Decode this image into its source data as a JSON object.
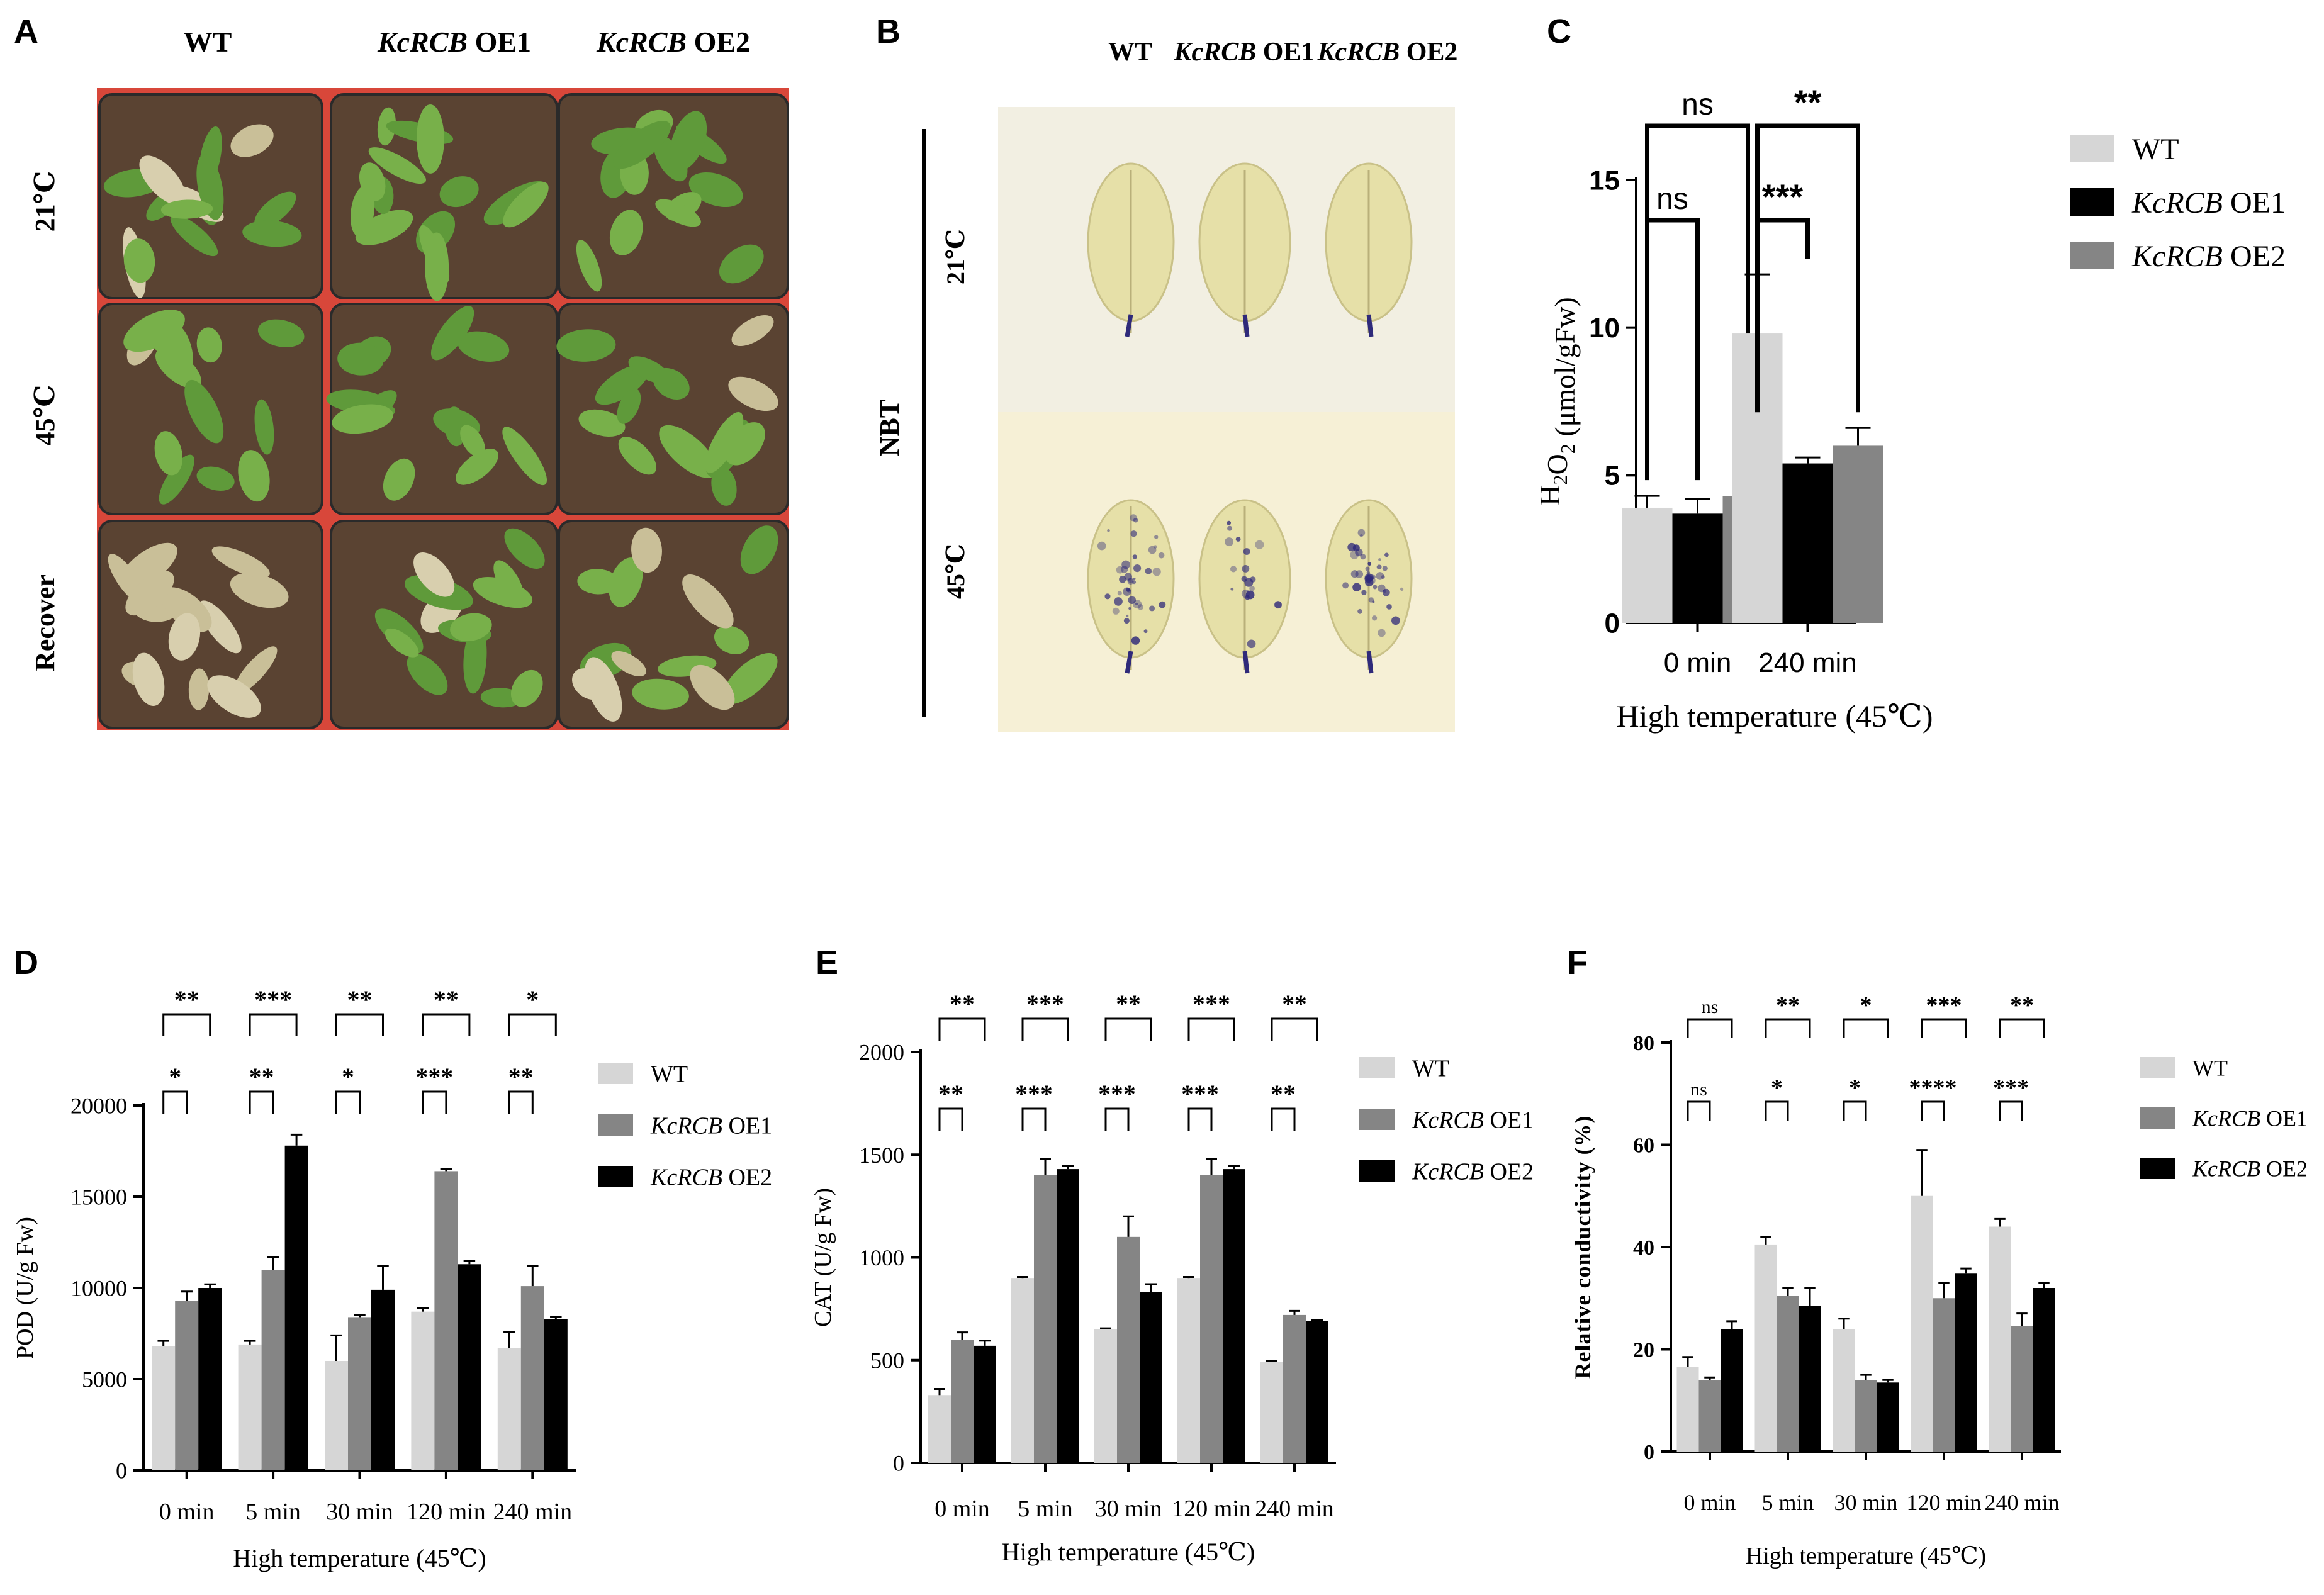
{
  "figure": {
    "panels": {
      "A": {
        "label": "A",
        "columns": [
          {
            "gene": "",
            "suffix": "WT"
          },
          {
            "gene": "KcRCB",
            "suffix": " OE1"
          },
          {
            "gene": "KcRCB",
            "suffix": " OE2"
          }
        ],
        "rows": [
          "21℃",
          "45℃",
          "Recover"
        ],
        "tray_color": "#e04a3a",
        "soil_color": "#5a4332",
        "plant_health": [
          [
            0.95,
            0.98,
            0.95
          ],
          [
            0.8,
            0.95,
            0.85
          ],
          [
            0.1,
            0.85,
            0.55
          ]
        ]
      },
      "B": {
        "label": "B",
        "columns": [
          {
            "gene": "",
            "suffix": "WT"
          },
          {
            "gene": "KcRCB",
            "suffix": " OE1"
          },
          {
            "gene": "KcRCB",
            "suffix": " OE2"
          }
        ],
        "stain": "NBT",
        "rows": [
          "21℃",
          "45℃"
        ],
        "background_color": "#f2efe2",
        "leaf_color": "#e6e0a8",
        "stain_color": "#2f2a7a"
      },
      "C": {
        "label": "C"
      },
      "D": {
        "label": "D"
      },
      "E": {
        "label": "E"
      },
      "F": {
        "label": "F"
      }
    }
  },
  "chart_data": [
    {
      "id": "C",
      "type": "bar",
      "categories": [
        "0 min",
        "240 min"
      ],
      "series": [
        {
          "name": "WT",
          "color": "#d6d6d6",
          "values": [
            3.9,
            9.8
          ],
          "errors": [
            0.4,
            2.0
          ]
        },
        {
          "name": "KcRCB OE1",
          "color": "#000000",
          "values": [
            3.7,
            5.4
          ],
          "errors": [
            0.5,
            0.2
          ]
        },
        {
          "name": "KcRCB OE2",
          "color": "#858585",
          "values": [
            4.3,
            6.0
          ],
          "errors": [
            1.2,
            0.6
          ]
        }
      ],
      "ylim": [
        0,
        15
      ],
      "yticks": [
        "0",
        "5",
        "10",
        "15"
      ],
      "ylabel_main": "H",
      "ylabel_sub": "2",
      "ylabel_mid": "O",
      "ylabel_sub2": "2",
      "ylabel_tail": " (μmol/gFw)",
      "xlabel": "High temperature (45℃)",
      "significance": [
        {
          "category": "0 min",
          "inner": "ns",
          "outer": "ns"
        },
        {
          "category": "240 min",
          "inner": "***",
          "outer": "**"
        }
      ],
      "legend_position": "right"
    },
    {
      "id": "D",
      "type": "bar",
      "categories": [
        "0 min",
        "5 min",
        "30 min",
        "120 min",
        "240 min"
      ],
      "series": [
        {
          "name": "WT",
          "color": "#d6d6d6",
          "values": [
            6800,
            6900,
            6000,
            8700,
            6700
          ],
          "errors": [
            300,
            200,
            1400,
            200,
            900
          ]
        },
        {
          "name": "KcRCB OE1",
          "color": "#858585",
          "values": [
            9300,
            11000,
            8400,
            16400,
            10100
          ],
          "errors": [
            500,
            700,
            100,
            100,
            1100
          ]
        },
        {
          "name": "KcRCB OE2",
          "color": "#000000",
          "values": [
            10000,
            17800,
            9900,
            11300,
            8300
          ],
          "errors": [
            200,
            600,
            1300,
            200,
            100
          ]
        }
      ],
      "ylim": [
        0,
        20000
      ],
      "yticks": [
        "0",
        "5000",
        "10000",
        "15000",
        "20000"
      ],
      "ylabel": "POD (U/g Fw)",
      "xlabel": "High temperature (45℃)",
      "significance": [
        {
          "category": "0 min",
          "inner": "*",
          "outer": "**"
        },
        {
          "category": "5 min",
          "inner": "**",
          "outer": "***"
        },
        {
          "category": "30 min",
          "inner": "*",
          "outer": "**"
        },
        {
          "category": "120 min",
          "inner": "***",
          "outer": "**"
        },
        {
          "category": "240 min",
          "inner": "**",
          "outer": "*"
        }
      ],
      "legend_position": "right"
    },
    {
      "id": "E",
      "type": "bar",
      "categories": [
        "0 min",
        "5 min",
        "30 min",
        "120 min",
        "240 min"
      ],
      "series": [
        {
          "name": "WT",
          "color": "#d6d6d6",
          "values": [
            330,
            900,
            650,
            900,
            490
          ],
          "errors": [
            30,
            5,
            5,
            5,
            5
          ]
        },
        {
          "name": "KcRCB OE1",
          "color": "#858585",
          "values": [
            600,
            1400,
            1100,
            1400,
            720
          ],
          "errors": [
            35,
            80,
            100,
            80,
            20
          ]
        },
        {
          "name": "KcRCB OE2",
          "color": "#000000",
          "values": [
            570,
            1430,
            830,
            1430,
            690
          ],
          "errors": [
            25,
            15,
            40,
            15,
            5
          ]
        }
      ],
      "ylim": [
        0,
        2000
      ],
      "yticks": [
        "0",
        "500",
        "1000",
        "1500",
        "2000"
      ],
      "ylabel": "CAT (U/g Fw)",
      "xlabel": "High temperature (45℃)",
      "significance": [
        {
          "category": "0 min",
          "inner": "**",
          "outer": "**"
        },
        {
          "category": "5 min",
          "inner": "***",
          "outer": "***"
        },
        {
          "category": "30 min",
          "inner": "***",
          "outer": "**"
        },
        {
          "category": "120 min",
          "inner": "***",
          "outer": "***"
        },
        {
          "category": "240 min",
          "inner": "**",
          "outer": "**"
        }
      ],
      "legend_position": "right"
    },
    {
      "id": "F",
      "type": "bar",
      "categories": [
        "0 min",
        "5 min",
        "30 min",
        "120 min",
        "240 min"
      ],
      "series": [
        {
          "name": "WT",
          "color": "#d6d6d6",
          "values": [
            16.5,
            40.5,
            24,
            50,
            44
          ],
          "errors": [
            2,
            1.5,
            2,
            9,
            1.5
          ]
        },
        {
          "name": "KcRCB OE1",
          "color": "#858585",
          "values": [
            14,
            30.5,
            14,
            30,
            24.5
          ],
          "errors": [
            0.5,
            1.5,
            1,
            3,
            2.5
          ]
        },
        {
          "name": "KcRCB OE2",
          "color": "#000000",
          "values": [
            24,
            28.5,
            13.5,
            34.8,
            32
          ],
          "errors": [
            1.5,
            3.5,
            0.5,
            1,
            1
          ]
        }
      ],
      "ylim": [
        0,
        80
      ],
      "yticks": [
        "0",
        "20",
        "40",
        "60",
        "80"
      ],
      "ylabel": "Relative conductivity (%)",
      "xlabel": "High temperature (45℃)",
      "significance": [
        {
          "category": "0 min",
          "inner": "ns",
          "outer": "ns"
        },
        {
          "category": "5 min",
          "inner": "*",
          "outer": "**"
        },
        {
          "category": "30 min",
          "inner": "*",
          "outer": "*"
        },
        {
          "category": "120 min",
          "inner": "****",
          "outer": "***"
        },
        {
          "category": "240 min",
          "inner": "***",
          "outer": "**"
        }
      ],
      "legend_position": "right"
    }
  ]
}
